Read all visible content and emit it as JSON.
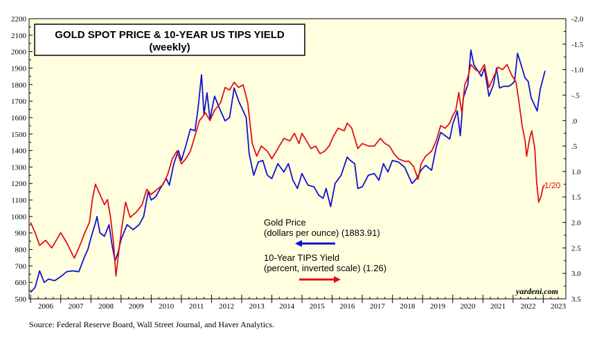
{
  "chart_data": {
    "type": "line",
    "title": "GOLD SPOT PRICE & 10-YEAR US TIPS YIELD",
    "subtitle": "(weekly)",
    "x_tick_labels": [
      "2006",
      "2007",
      "2008",
      "2009",
      "2010",
      "2011",
      "2012",
      "2013",
      "2014",
      "2015",
      "2016",
      "2017",
      "2018",
      "2019",
      "2020",
      "2021",
      "2022",
      "2023"
    ],
    "xlim": [
      2005.95,
      2023.75
    ],
    "left_axis": {
      "ylim": [
        500,
        2200
      ],
      "tick_labels": [
        "500",
        "600",
        "700",
        "800",
        "900",
        "1000",
        "1100",
        "1200",
        "1300",
        "1400",
        "1500",
        "1600",
        "1700",
        "1800",
        "1900",
        "2000",
        "2100",
        "2200"
      ]
    },
    "right_axis": {
      "ylim": [
        3.5,
        -2.0
      ],
      "inverted": true,
      "tick_labels": [
        "-2.0",
        "-1.5",
        "-1.0",
        "-.5",
        ".0",
        ".5",
        "1.0",
        "1.5",
        "2.0",
        "2.5",
        "3.0",
        "3.5"
      ]
    },
    "series": [
      {
        "name": "Gold Price",
        "axis": "left",
        "color": "#1010d0",
        "points": [
          [
            2006.0,
            540
          ],
          [
            2006.15,
            570
          ],
          [
            2006.3,
            670
          ],
          [
            2006.45,
            600
          ],
          [
            2006.6,
            620
          ],
          [
            2006.8,
            610
          ],
          [
            2007.0,
            635
          ],
          [
            2007.2,
            665
          ],
          [
            2007.4,
            670
          ],
          [
            2007.6,
            665
          ],
          [
            2007.8,
            760
          ],
          [
            2007.9,
            800
          ],
          [
            2008.0,
            870
          ],
          [
            2008.15,
            960
          ],
          [
            2008.2,
            1000
          ],
          [
            2008.3,
            900
          ],
          [
            2008.45,
            880
          ],
          [
            2008.6,
            950
          ],
          [
            2008.7,
            830
          ],
          [
            2008.8,
            730
          ],
          [
            2008.9,
            780
          ],
          [
            2009.0,
            860
          ],
          [
            2009.2,
            950
          ],
          [
            2009.4,
            920
          ],
          [
            2009.6,
            950
          ],
          [
            2009.75,
            1000
          ],
          [
            2009.9,
            1150
          ],
          [
            2010.0,
            1100
          ],
          [
            2010.15,
            1120
          ],
          [
            2010.3,
            1170
          ],
          [
            2010.5,
            1230
          ],
          [
            2010.6,
            1190
          ],
          [
            2010.75,
            1320
          ],
          [
            2010.9,
            1400
          ],
          [
            2011.0,
            1340
          ],
          [
            2011.15,
            1430
          ],
          [
            2011.3,
            1530
          ],
          [
            2011.45,
            1520
          ],
          [
            2011.55,
            1650
          ],
          [
            2011.67,
            1860
          ],
          [
            2011.75,
            1620
          ],
          [
            2011.85,
            1750
          ],
          [
            2011.95,
            1590
          ],
          [
            2012.1,
            1730
          ],
          [
            2012.3,
            1640
          ],
          [
            2012.45,
            1580
          ],
          [
            2012.6,
            1600
          ],
          [
            2012.75,
            1780
          ],
          [
            2012.9,
            1700
          ],
          [
            2013.0,
            1660
          ],
          [
            2013.15,
            1600
          ],
          [
            2013.25,
            1380
          ],
          [
            2013.4,
            1250
          ],
          [
            2013.55,
            1330
          ],
          [
            2013.7,
            1340
          ],
          [
            2013.85,
            1250
          ],
          [
            2014.0,
            1230
          ],
          [
            2014.2,
            1320
          ],
          [
            2014.4,
            1270
          ],
          [
            2014.55,
            1320
          ],
          [
            2014.7,
            1220
          ],
          [
            2014.85,
            1170
          ],
          [
            2015.0,
            1260
          ],
          [
            2015.2,
            1190
          ],
          [
            2015.4,
            1180
          ],
          [
            2015.55,
            1130
          ],
          [
            2015.7,
            1110
          ],
          [
            2015.8,
            1170
          ],
          [
            2015.95,
            1060
          ],
          [
            2016.1,
            1200
          ],
          [
            2016.3,
            1250
          ],
          [
            2016.5,
            1360
          ],
          [
            2016.6,
            1340
          ],
          [
            2016.75,
            1320
          ],
          [
            2016.85,
            1170
          ],
          [
            2017.0,
            1180
          ],
          [
            2017.2,
            1250
          ],
          [
            2017.4,
            1260
          ],
          [
            2017.55,
            1220
          ],
          [
            2017.7,
            1320
          ],
          [
            2017.85,
            1270
          ],
          [
            2018.0,
            1340
          ],
          [
            2018.2,
            1330
          ],
          [
            2018.4,
            1300
          ],
          [
            2018.55,
            1240
          ],
          [
            2018.65,
            1200
          ],
          [
            2018.8,
            1230
          ],
          [
            2018.95,
            1280
          ],
          [
            2019.1,
            1310
          ],
          [
            2019.3,
            1280
          ],
          [
            2019.45,
            1420
          ],
          [
            2019.6,
            1510
          ],
          [
            2019.75,
            1490
          ],
          [
            2019.9,
            1470
          ],
          [
            2020.0,
            1560
          ],
          [
            2020.15,
            1640
          ],
          [
            2020.25,
            1490
          ],
          [
            2020.35,
            1720
          ],
          [
            2020.5,
            1800
          ],
          [
            2020.6,
            2010
          ],
          [
            2020.7,
            1920
          ],
          [
            2020.85,
            1880
          ],
          [
            2020.95,
            1850
          ],
          [
            2021.05,
            1900
          ],
          [
            2021.2,
            1730
          ],
          [
            2021.35,
            1800
          ],
          [
            2021.45,
            1900
          ],
          [
            2021.55,
            1780
          ],
          [
            2021.7,
            1790
          ],
          [
            2021.85,
            1790
          ],
          [
            2021.95,
            1800
          ],
          [
            2022.05,
            1820
          ],
          [
            2022.15,
            1990
          ],
          [
            2022.25,
            1930
          ],
          [
            2022.4,
            1840
          ],
          [
            2022.5,
            1820
          ],
          [
            2022.6,
            1720
          ],
          [
            2022.7,
            1680
          ],
          [
            2022.8,
            1640
          ],
          [
            2022.9,
            1770
          ],
          [
            2023.0,
            1840
          ],
          [
            2023.06,
            1884
          ]
        ]
      },
      {
        "name": "10-Year TIPS Yield",
        "axis": "right",
        "color": "#e01010",
        "points": [
          [
            2006.0,
            2.0
          ],
          [
            2006.15,
            2.2
          ],
          [
            2006.3,
            2.45
          ],
          [
            2006.5,
            2.35
          ],
          [
            2006.7,
            2.5
          ],
          [
            2006.9,
            2.3
          ],
          [
            2007.0,
            2.2
          ],
          [
            2007.2,
            2.4
          ],
          [
            2007.45,
            2.7
          ],
          [
            2007.6,
            2.5
          ],
          [
            2007.8,
            2.2
          ],
          [
            2007.95,
            2.0
          ],
          [
            2008.05,
            1.55
          ],
          [
            2008.15,
            1.25
          ],
          [
            2008.3,
            1.45
          ],
          [
            2008.45,
            1.65
          ],
          [
            2008.55,
            1.55
          ],
          [
            2008.65,
            1.9
          ],
          [
            2008.75,
            2.4
          ],
          [
            2008.83,
            3.05
          ],
          [
            2008.9,
            2.7
          ],
          [
            2009.0,
            2.2
          ],
          [
            2009.15,
            1.6
          ],
          [
            2009.3,
            1.9
          ],
          [
            2009.5,
            1.8
          ],
          [
            2009.7,
            1.65
          ],
          [
            2009.85,
            1.35
          ],
          [
            2010.0,
            1.45
          ],
          [
            2010.2,
            1.35
          ],
          [
            2010.4,
            1.25
          ],
          [
            2010.55,
            1.05
          ],
          [
            2010.7,
            0.75
          ],
          [
            2010.85,
            0.6
          ],
          [
            2011.0,
            0.85
          ],
          [
            2011.15,
            0.75
          ],
          [
            2011.3,
            0.6
          ],
          [
            2011.45,
            0.3
          ],
          [
            2011.6,
            0.0
          ],
          [
            2011.8,
            -0.15
          ],
          [
            2011.95,
            0.0
          ],
          [
            2012.1,
            -0.2
          ],
          [
            2012.3,
            -0.35
          ],
          [
            2012.45,
            -0.65
          ],
          [
            2012.6,
            -0.6
          ],
          [
            2012.75,
            -0.75
          ],
          [
            2012.9,
            -0.65
          ],
          [
            2013.05,
            -0.7
          ],
          [
            2013.2,
            -0.35
          ],
          [
            2013.35,
            0.45
          ],
          [
            2013.5,
            0.7
          ],
          [
            2013.65,
            0.5
          ],
          [
            2013.85,
            0.6
          ],
          [
            2014.0,
            0.75
          ],
          [
            2014.2,
            0.55
          ],
          [
            2014.4,
            0.35
          ],
          [
            2014.6,
            0.4
          ],
          [
            2014.75,
            0.25
          ],
          [
            2014.9,
            0.45
          ],
          [
            2015.0,
            0.25
          ],
          [
            2015.15,
            0.4
          ],
          [
            2015.3,
            0.55
          ],
          [
            2015.45,
            0.5
          ],
          [
            2015.6,
            0.65
          ],
          [
            2015.75,
            0.6
          ],
          [
            2015.9,
            0.5
          ],
          [
            2016.05,
            0.3
          ],
          [
            2016.2,
            0.15
          ],
          [
            2016.4,
            0.2
          ],
          [
            2016.5,
            0.05
          ],
          [
            2016.65,
            0.15
          ],
          [
            2016.85,
            0.55
          ],
          [
            2017.0,
            0.45
          ],
          [
            2017.2,
            0.5
          ],
          [
            2017.4,
            0.5
          ],
          [
            2017.6,
            0.35
          ],
          [
            2017.75,
            0.45
          ],
          [
            2017.9,
            0.5
          ],
          [
            2018.05,
            0.65
          ],
          [
            2018.2,
            0.75
          ],
          [
            2018.4,
            0.8
          ],
          [
            2018.55,
            0.8
          ],
          [
            2018.7,
            0.9
          ],
          [
            2018.85,
            1.15
          ],
          [
            2018.95,
            0.85
          ],
          [
            2019.1,
            0.7
          ],
          [
            2019.3,
            0.6
          ],
          [
            2019.45,
            0.4
          ],
          [
            2019.6,
            0.1
          ],
          [
            2019.75,
            0.15
          ],
          [
            2019.9,
            0.05
          ],
          [
            2020.0,
            -0.1
          ],
          [
            2020.1,
            -0.2
          ],
          [
            2020.2,
            -0.55
          ],
          [
            2020.3,
            -0.15
          ],
          [
            2020.4,
            -0.7
          ],
          [
            2020.5,
            -0.85
          ],
          [
            2020.6,
            -1.1
          ],
          [
            2020.75,
            -1.0
          ],
          [
            2020.9,
            -0.95
          ],
          [
            2021.05,
            -1.1
          ],
          [
            2021.2,
            -0.65
          ],
          [
            2021.35,
            -0.85
          ],
          [
            2021.5,
            -1.05
          ],
          [
            2021.65,
            -1.0
          ],
          [
            2021.8,
            -1.1
          ],
          [
            2021.95,
            -0.9
          ],
          [
            2022.1,
            -0.75
          ],
          [
            2022.2,
            -0.35
          ],
          [
            2022.3,
            0.1
          ],
          [
            2022.4,
            0.4
          ],
          [
            2022.45,
            0.7
          ],
          [
            2022.55,
            0.35
          ],
          [
            2022.62,
            0.2
          ],
          [
            2022.72,
            0.55
          ],
          [
            2022.78,
            1.2
          ],
          [
            2022.85,
            1.6
          ],
          [
            2022.92,
            1.5
          ],
          [
            2023.0,
            1.3
          ],
          [
            2023.05,
            1.26
          ]
        ]
      }
    ],
    "legend": [
      {
        "line1": "Gold Price",
        "line2": "(dollars per ounce) (1883.91)",
        "arrow": "left"
      },
      {
        "line1": "10-Year TIPS Yield",
        "line2": "(percent, inverted scale) (1.26)",
        "arrow": "right"
      }
    ],
    "annotation": "1/20",
    "brand": "yardeni.com"
  },
  "source": "Source: Federal Reserve Board, Wall Street Journal, and Haver Analytics."
}
